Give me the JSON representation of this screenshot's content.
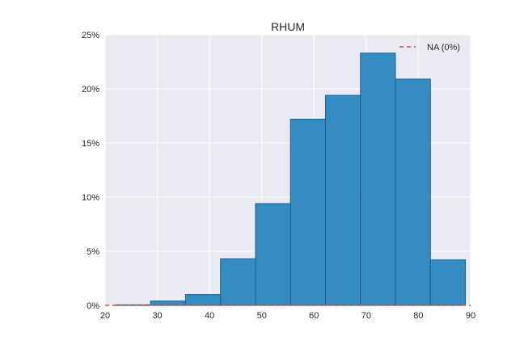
{
  "chart_data": {
    "type": "bar",
    "title": "RHUM",
    "xlabel": "",
    "ylabel": "",
    "xlim": [
      20,
      90
    ],
    "ylim": [
      0,
      25
    ],
    "x_ticks": [
      "20",
      "30",
      "40",
      "50",
      "60",
      "70",
      "80",
      "90"
    ],
    "y_ticks": [
      "0%",
      "5%",
      "10%",
      "15%",
      "20%",
      "25%"
    ],
    "bins": [
      {
        "start": 22.0,
        "end": 28.7,
        "value": 0.05
      },
      {
        "start": 28.7,
        "end": 35.4,
        "value": 0.4
      },
      {
        "start": 35.4,
        "end": 42.1,
        "value": 1.0
      },
      {
        "start": 42.1,
        "end": 48.8,
        "value": 4.3
      },
      {
        "start": 48.8,
        "end": 55.5,
        "value": 9.4
      },
      {
        "start": 55.5,
        "end": 62.2,
        "value": 17.2
      },
      {
        "start": 62.2,
        "end": 68.9,
        "value": 19.4
      },
      {
        "start": 68.9,
        "end": 75.6,
        "value": 23.3
      },
      {
        "start": 75.6,
        "end": 82.3,
        "value": 20.9
      },
      {
        "start": 82.3,
        "end": 89.0,
        "value": 4.2
      }
    ],
    "bar_color": "#2b87c0",
    "na_line_color": "#d9534f",
    "legend": {
      "label": "NA (0%)",
      "placement": "top-right"
    },
    "grid": true,
    "background": "#eaeaf2"
  }
}
